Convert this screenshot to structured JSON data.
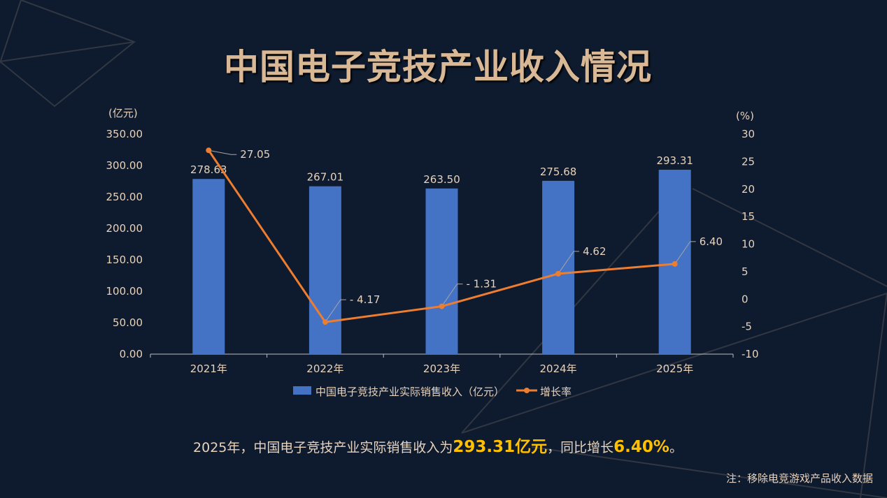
{
  "title": "中国电子竞技产业收入情况",
  "chart_data": {
    "type": "bar+line",
    "categories": [
      "2021年",
      "2022年",
      "2023年",
      "2024年",
      "2025年"
    ],
    "series": [
      {
        "name": "中国电子竞技产业实际销售收入（亿元）",
        "type": "bar",
        "axis": "left",
        "values": [
          278.63,
          267.01,
          263.5,
          275.68,
          293.31
        ],
        "labels": [
          "278.63",
          "267.01",
          "263.50",
          "275.68",
          "293.31"
        ],
        "color": "#4472c4"
      },
      {
        "name": "增长率",
        "type": "line",
        "axis": "right",
        "values": [
          27.05,
          -4.17,
          -1.31,
          4.62,
          6.4
        ],
        "labels": [
          "27.05",
          "- 4.17",
          "- 1.31",
          "4.62",
          "6.40"
        ],
        "color": "#ed7d31"
      }
    ],
    "y_left": {
      "label": "(亿元)",
      "range": [
        0,
        350
      ],
      "ticks": [
        "0.00",
        "50.00",
        "100.00",
        "150.00",
        "200.00",
        "250.00",
        "300.00",
        "350.00"
      ]
    },
    "y_right": {
      "label": "(%)",
      "range": [
        -10,
        30
      ],
      "ticks": [
        "-10",
        "-5",
        "0",
        "5",
        "10",
        "15",
        "20",
        "25",
        "30"
      ]
    },
    "grid": false,
    "legend": "bottom"
  },
  "summary": {
    "prefix": "2025年，中国电子竞技产业实际销售收入为",
    "revenue": "293.31亿元",
    "middle": "，同比增长",
    "growth": "6.40%",
    "suffix": "。"
  },
  "note": "注：移除电竞游戏产品收入数据",
  "colors": {
    "background": "#0e1a2d",
    "title": "#d9b896",
    "text": "#e8d3bd",
    "highlight": "#ffc000"
  }
}
